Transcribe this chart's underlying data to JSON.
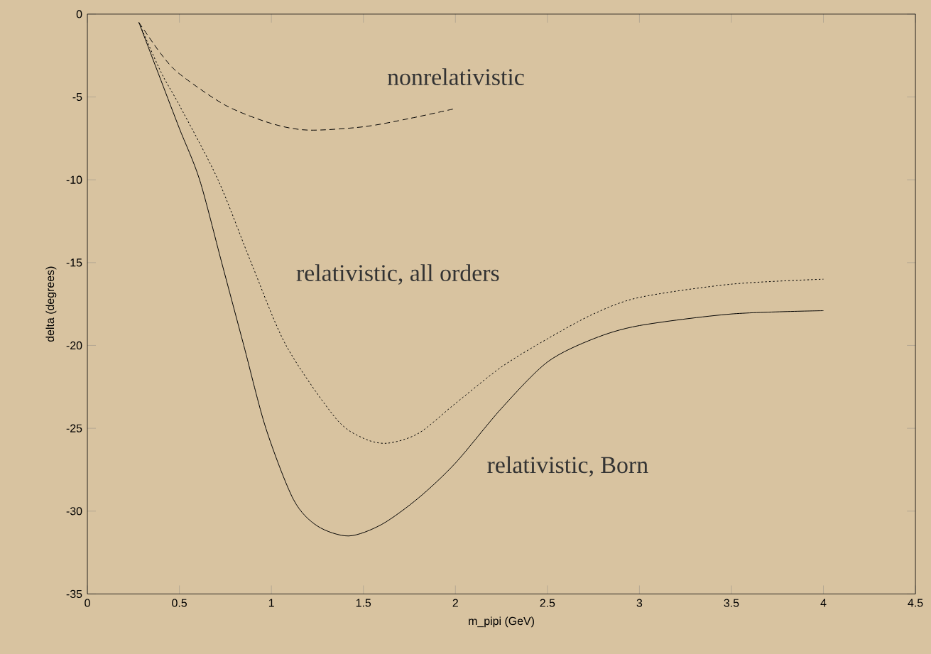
{
  "chart_data": {
    "type": "line",
    "xlabel": "m_pipi (GeV)",
    "ylabel": "delta (degrees)",
    "xlim": [
      0,
      4.5
    ],
    "ylim": [
      -35,
      0
    ],
    "xticks": [
      0,
      0.5,
      1,
      1.5,
      2,
      2.5,
      3,
      3.5,
      4,
      4.5
    ],
    "yticks": [
      -35,
      -30,
      -25,
      -20,
      -15,
      -10,
      -5,
      0
    ],
    "grid": false,
    "series": [
      {
        "color": "#000000",
        "line_style": "dashed",
        "x": [
          0.28,
          0.4,
          0.5,
          0.75,
          1.0,
          1.2,
          1.5,
          1.75,
          2.0
        ],
        "values": [
          -0.5,
          -2.4,
          -3.6,
          -5.5,
          -6.6,
          -7.0,
          -6.8,
          -6.3,
          -5.7
        ]
      },
      {
        "color": "#000000",
        "line_style": "dotted",
        "x": [
          0.28,
          0.4,
          0.5,
          0.71,
          0.89,
          1.08,
          1.35,
          1.5,
          1.63,
          1.8,
          2.0,
          2.25,
          2.5,
          2.75,
          3.0,
          3.5,
          4.0
        ],
        "values": [
          -0.5,
          -3.5,
          -5.5,
          -10.0,
          -15.0,
          -20.0,
          -24.4,
          -25.6,
          -25.9,
          -25.3,
          -23.5,
          -21.3,
          -19.6,
          -18.1,
          -17.1,
          -16.3,
          -16.0
        ]
      },
      {
        "color": "#000000",
        "line_style": "solid",
        "x": [
          0.28,
          0.4,
          0.5,
          0.61,
          0.73,
          0.85,
          0.97,
          1.12,
          1.25,
          1.42,
          1.6,
          1.8,
          2.0,
          2.25,
          2.5,
          2.75,
          3.0,
          3.5,
          4.0
        ],
        "values": [
          -0.5,
          -4.0,
          -6.9,
          -10.0,
          -15.0,
          -20.0,
          -25.0,
          -29.3,
          -30.9,
          -31.5,
          -30.8,
          -29.2,
          -27.1,
          -23.8,
          -21.0,
          -19.6,
          -18.8,
          -18.1,
          -17.9
        ]
      }
    ],
    "annotations": [
      "nonrelativistic",
      "relativistic, all orders",
      "relativistic, Born"
    ]
  }
}
